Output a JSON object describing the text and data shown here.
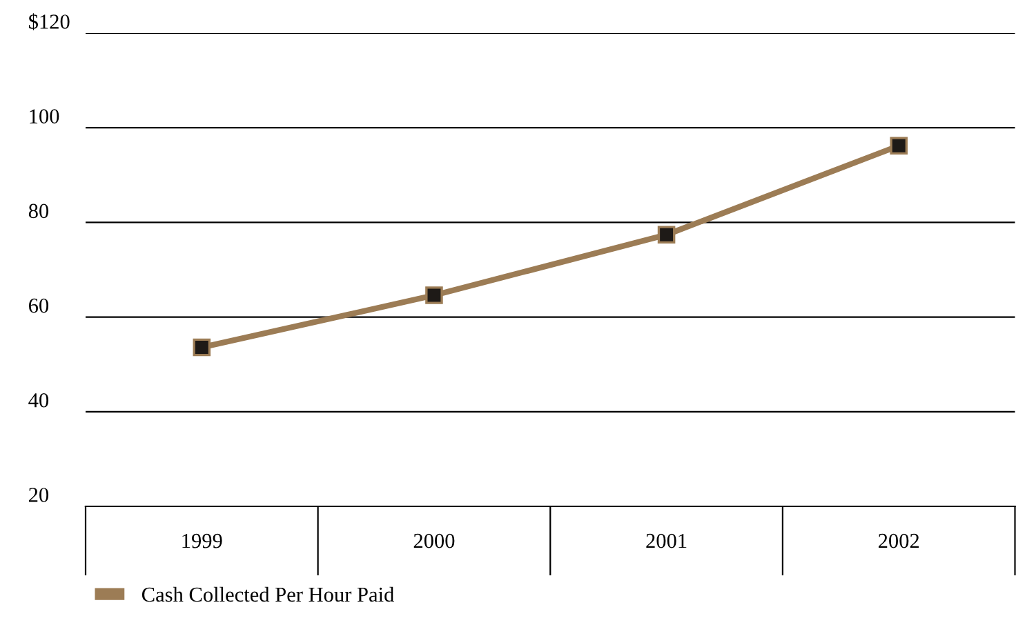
{
  "chart_data": {
    "type": "line",
    "categories": [
      "1999",
      "2000",
      "2001",
      "2002"
    ],
    "series": [
      {
        "name": "Cash Collected Per Hour Paid",
        "color": "#9c7c55",
        "values": [
          53.6,
          64.6,
          77.4,
          96.2
        ]
      }
    ],
    "ylim": [
      20,
      120
    ],
    "yticks": [
      20,
      40,
      60,
      80,
      {
        "value": 120,
        "label": "$120"
      },
      100
    ],
    "grid": "y",
    "marker": "square",
    "line_style": "solid",
    "legend": "bottom left"
  }
}
